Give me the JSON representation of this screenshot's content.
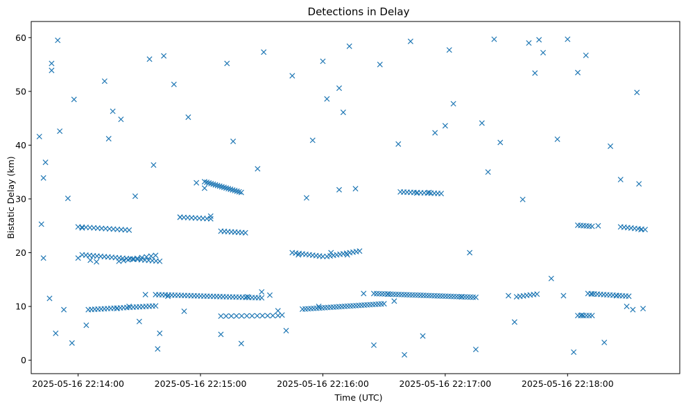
{
  "chart_data": {
    "type": "scatter",
    "title": "Detections in Delay",
    "xlabel": "Time (UTC)",
    "ylabel": "Bistatic Delay (km)",
    "marker": "x",
    "color": "#1f77b4",
    "grid": false,
    "legend": "none",
    "xlim": [
      "2025-05-16 22:13:37",
      "2025-05-16 22:18:55"
    ],
    "ylim": [
      -2.5,
      63
    ],
    "xticks": [
      "2025-05-16 22:14:00",
      "2025-05-16 22:15:00",
      "2025-05-16 22:16:00",
      "2025-05-16 22:17:00",
      "2025-05-16 22:18:00"
    ],
    "yticks": [
      0,
      10,
      20,
      30,
      40,
      50,
      60
    ],
    "series": [
      {
        "points": [
          [
            "2025-05-16 22:13:41",
            41.6
          ],
          [
            "2025-05-16 22:13:42",
            25.3
          ],
          [
            "2025-05-16 22:13:43",
            19.0
          ],
          [
            "2025-05-16 22:13:43",
            33.9
          ],
          [
            "2025-05-16 22:13:44",
            36.8
          ],
          [
            "2025-05-16 22:13:46",
            11.5
          ],
          [
            "2025-05-16 22:13:47",
            55.2
          ],
          [
            "2025-05-16 22:13:47",
            53.9
          ],
          [
            "2025-05-16 22:13:49",
            5.0
          ],
          [
            "2025-05-16 22:13:50",
            59.5
          ],
          [
            "2025-05-16 22:13:51",
            42.6
          ],
          [
            "2025-05-16 22:13:53",
            9.4
          ],
          [
            "2025-05-16 22:13:55",
            30.1
          ],
          [
            "2025-05-16 22:13:57",
            3.2
          ],
          [
            "2025-05-16 22:13:58",
            48.5
          ],
          [
            "2025-05-16 22:14:00",
            19.0
          ],
          [
            "2025-05-16 22:14:02",
            24.6
          ],
          [
            "2025-05-16 22:14:04",
            6.5
          ],
          [
            "2025-05-16 22:14:06",
            18.6
          ],
          [
            "2025-05-16 22:14:09",
            18.3
          ],
          [
            "2025-05-16 22:14:13",
            51.9
          ],
          [
            "2025-05-16 22:14:15",
            41.2
          ],
          [
            "2025-05-16 22:14:17",
            46.3
          ],
          [
            "2025-05-16 22:14:19",
            9.6
          ],
          [
            "2025-05-16 22:14:21",
            44.8
          ],
          [
            "2025-05-16 22:14:25",
            10.0
          ],
          [
            "2025-05-16 22:14:28",
            30.5
          ],
          [
            "2025-05-16 22:14:30",
            7.2
          ],
          [
            "2025-05-16 22:14:33",
            12.2
          ],
          [
            "2025-05-16 22:14:35",
            56.0
          ],
          [
            "2025-05-16 22:14:37",
            36.3
          ],
          [
            "2025-05-16 22:14:39",
            2.1
          ],
          [
            "2025-05-16 22:14:42",
            56.6
          ],
          [
            "2025-05-16 22:14:44",
            11.9
          ],
          [
            "2025-05-16 22:14:47",
            51.3
          ],
          [
            "2025-05-16 22:14:50",
            26.6
          ],
          [
            "2025-05-16 22:14:54",
            45.2
          ],
          [
            "2025-05-16 22:14:58",
            33.0
          ],
          [
            "2025-05-16 22:15:02",
            32.0
          ],
          [
            "2025-05-16 22:15:05",
            26.8
          ],
          [
            "2025-05-16 22:15:10",
            4.8
          ],
          [
            "2025-05-16 22:15:13",
            55.2
          ],
          [
            "2025-05-16 22:15:16",
            40.7
          ],
          [
            "2025-05-16 22:15:20",
            3.1
          ],
          [
            "2025-05-16 22:15:23",
            11.8
          ],
          [
            "2025-05-16 22:15:28",
            35.6
          ],
          [
            "2025-05-16 22:15:31",
            57.3
          ],
          [
            "2025-05-16 22:15:34",
            12.1
          ],
          [
            "2025-05-16 22:15:38",
            9.2
          ],
          [
            "2025-05-16 22:15:42",
            5.5
          ],
          [
            "2025-05-16 22:15:45",
            52.9
          ],
          [
            "2025-05-16 22:15:48",
            19.6
          ],
          [
            "2025-05-16 22:15:52",
            30.2
          ],
          [
            "2025-05-16 22:15:55",
            40.9
          ],
          [
            "2025-05-16 22:15:58",
            10.0
          ],
          [
            "2025-05-16 22:16:00",
            55.6
          ],
          [
            "2025-05-16 22:16:02",
            48.6
          ],
          [
            "2025-05-16 22:16:04",
            20.0
          ],
          [
            "2025-05-16 22:16:08",
            50.6
          ],
          [
            "2025-05-16 22:16:10",
            46.1
          ],
          [
            "2025-05-16 22:16:13",
            58.4
          ],
          [
            "2025-05-16 22:16:16",
            31.9
          ],
          [
            "2025-05-16 22:16:20",
            12.4
          ],
          [
            "2025-05-16 22:16:25",
            2.8
          ],
          [
            "2025-05-16 22:16:28",
            55.0
          ],
          [
            "2025-05-16 22:16:32",
            12.3
          ],
          [
            "2025-05-16 22:16:35",
            11.0
          ],
          [
            "2025-05-16 22:16:37",
            40.2
          ],
          [
            "2025-05-16 22:16:40",
            1.0
          ],
          [
            "2025-05-16 22:16:43",
            59.3
          ],
          [
            "2025-05-16 22:16:46",
            31.1
          ],
          [
            "2025-05-16 22:16:49",
            4.5
          ],
          [
            "2025-05-16 22:16:52",
            31.2
          ],
          [
            "2025-05-16 22:16:55",
            42.3
          ],
          [
            "2025-05-16 22:17:00",
            43.6
          ],
          [
            "2025-05-16 22:17:02",
            57.7
          ],
          [
            "2025-05-16 22:17:04",
            47.7
          ],
          [
            "2025-05-16 22:17:08",
            11.8
          ],
          [
            "2025-05-16 22:17:12",
            20.0
          ],
          [
            "2025-05-16 22:17:15",
            2.0
          ],
          [
            "2025-05-16 22:17:18",
            44.1
          ],
          [
            "2025-05-16 22:17:21",
            35.0
          ],
          [
            "2025-05-16 22:17:24",
            59.7
          ],
          [
            "2025-05-16 22:17:27",
            40.5
          ],
          [
            "2025-05-16 22:17:31",
            12.0
          ],
          [
            "2025-05-16 22:17:34",
            7.1
          ],
          [
            "2025-05-16 22:17:38",
            29.9
          ],
          [
            "2025-05-16 22:17:41",
            59.0
          ],
          [
            "2025-05-16 22:17:44",
            53.4
          ],
          [
            "2025-05-16 22:17:46",
            59.6
          ],
          [
            "2025-05-16 22:17:48",
            57.2
          ],
          [
            "2025-05-16 22:17:52",
            15.2
          ],
          [
            "2025-05-16 22:17:55",
            41.1
          ],
          [
            "2025-05-16 22:17:58",
            12.0
          ],
          [
            "2025-05-16 22:18:00",
            59.7
          ],
          [
            "2025-05-16 22:18:03",
            1.5
          ],
          [
            "2025-05-16 22:18:05",
            53.5
          ],
          [
            "2025-05-16 22:18:07",
            8.4
          ],
          [
            "2025-05-16 22:18:09",
            56.7
          ],
          [
            "2025-05-16 22:18:12",
            12.3
          ],
          [
            "2025-05-16 22:18:15",
            25.0
          ],
          [
            "2025-05-16 22:18:18",
            3.3
          ],
          [
            "2025-05-16 22:18:21",
            39.8
          ],
          [
            "2025-05-16 22:18:24",
            12.0
          ],
          [
            "2025-05-16 22:18:26",
            33.6
          ],
          [
            "2025-05-16 22:18:29",
            10.0
          ],
          [
            "2025-05-16 22:18:32",
            9.4
          ],
          [
            "2025-05-16 22:18:34",
            49.8
          ],
          [
            "2025-05-16 22:18:35",
            32.8
          ],
          [
            "2025-05-16 22:18:36",
            24.3
          ],
          [
            "2025-05-16 22:18:37",
            9.6
          ],
          [
            "2025-05-16 22:16:08",
            31.7
          ],
          [
            "2025-05-16 22:16:12",
            19.6
          ],
          [
            "2025-05-16 22:15:40",
            8.4
          ],
          [
            "2025-05-16 22:15:30",
            12.7
          ],
          [
            "2025-05-16 22:14:52",
            9.1
          ],
          [
            "2025-05-16 22:14:40",
            5.0
          ]
        ]
      }
    ],
    "tracks": [
      {
        "t0": "2025-05-16 22:14:00",
        "t1": "2025-05-16 22:14:25",
        "y0": 24.8,
        "y1": 24.2,
        "n": 14
      },
      {
        "t0": "2025-05-16 22:14:02",
        "t1": "2025-05-16 22:14:40",
        "y0": 19.6,
        "y1": 18.4,
        "n": 22
      },
      {
        "t0": "2025-05-16 22:14:20",
        "t1": "2025-05-16 22:14:38",
        "y0": 18.4,
        "y1": 19.5,
        "n": 9
      },
      {
        "t0": "2025-05-16 22:14:05",
        "t1": "2025-05-16 22:14:38",
        "y0": 9.4,
        "y1": 10.1,
        "n": 22
      },
      {
        "t0": "2025-05-16 22:14:38",
        "t1": "2025-05-16 22:15:30",
        "y0": 12.2,
        "y1": 11.6,
        "n": 34
      },
      {
        "t0": "2025-05-16 22:15:02",
        "t1": "2025-05-16 22:15:20",
        "y0": 33.2,
        "y1": 31.2,
        "n": 18
      },
      {
        "t0": "2025-05-16 22:14:50",
        "t1": "2025-05-16 22:15:05",
        "y0": 26.6,
        "y1": 26.3,
        "n": 9
      },
      {
        "t0": "2025-05-16 22:15:10",
        "t1": "2025-05-16 22:15:38",
        "y0": 8.2,
        "y1": 8.3,
        "n": 12
      },
      {
        "t0": "2025-05-16 22:15:10",
        "t1": "2025-05-16 22:15:22",
        "y0": 24.0,
        "y1": 23.7,
        "n": 8
      },
      {
        "t0": "2025-05-16 22:15:45",
        "t1": "2025-05-16 22:16:00",
        "y0": 20.0,
        "y1": 19.3,
        "n": 10
      },
      {
        "t0": "2025-05-16 22:15:50",
        "t1": "2025-05-16 22:16:30",
        "y0": 9.5,
        "y1": 10.5,
        "n": 30
      },
      {
        "t0": "2025-05-16 22:16:02",
        "t1": "2025-05-16 22:16:18",
        "y0": 19.3,
        "y1": 20.3,
        "n": 11
      },
      {
        "t0": "2025-05-16 22:16:25",
        "t1": "2025-05-16 22:17:15",
        "y0": 12.4,
        "y1": 11.7,
        "n": 38
      },
      {
        "t0": "2025-05-16 22:16:38",
        "t1": "2025-05-16 22:16:58",
        "y0": 31.3,
        "y1": 31.0,
        "n": 13
      },
      {
        "t0": "2025-05-16 22:17:35",
        "t1": "2025-05-16 22:17:45",
        "y0": 11.8,
        "y1": 12.3,
        "n": 7
      },
      {
        "t0": "2025-05-16 22:18:05",
        "t1": "2025-05-16 22:18:12",
        "y0": 25.1,
        "y1": 24.9,
        "n": 6
      },
      {
        "t0": "2025-05-16 22:18:10",
        "t1": "2025-05-16 22:18:30",
        "y0": 12.4,
        "y1": 11.9,
        "n": 14
      },
      {
        "t0": "2025-05-16 22:18:05",
        "t1": "2025-05-16 22:18:12",
        "y0": 8.3,
        "y1": 8.3,
        "n": 6
      },
      {
        "t0": "2025-05-16 22:18:26",
        "t1": "2025-05-16 22:18:38",
        "y0": 24.8,
        "y1": 24.3,
        "n": 8
      }
    ]
  }
}
